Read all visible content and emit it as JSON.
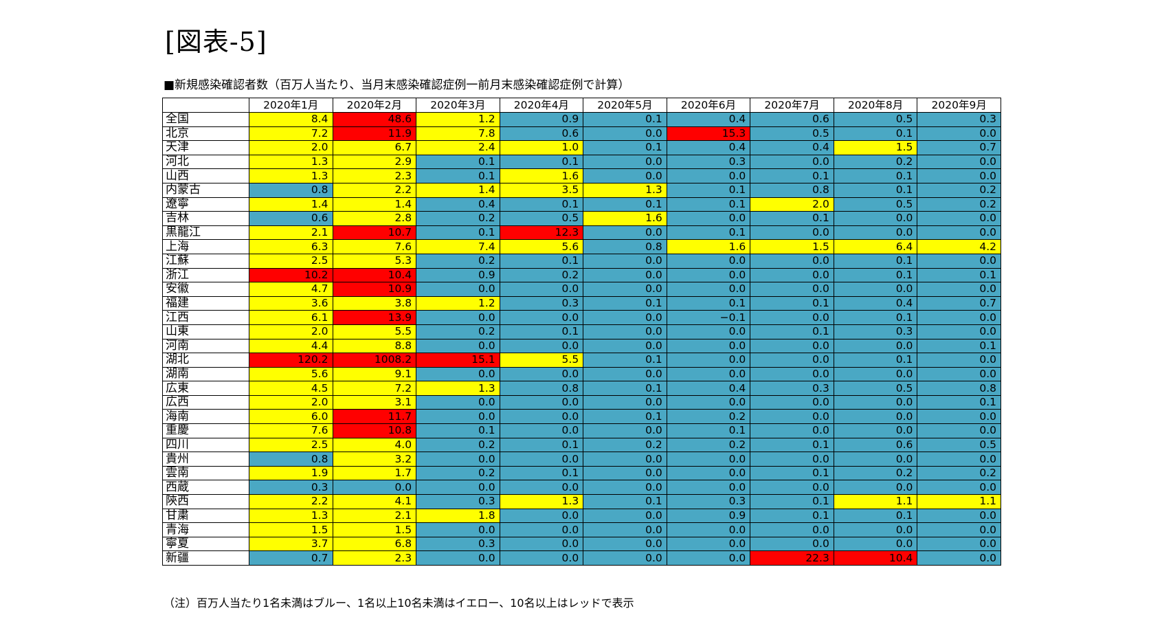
{
  "figure_label": "[図表-5]",
  "subtitle": "■新規感染確認者数（百万人当たり、当月末感染確認症例一前月末感染確認症例で計算）",
  "note": "（注）百万人当たり1名未満はブルー、1名以上10名未満はイエロー、10名以上はレッドで表示",
  "colors": {
    "blue": "#4aa8c4",
    "yellow": "#ffff00",
    "red": "#ff0000"
  },
  "chart_data": {
    "type": "table",
    "columns": [
      "2020年1月",
      "2020年2月",
      "2020年3月",
      "2020年4月",
      "2020年5月",
      "2020年6月",
      "2020年7月",
      "2020年8月",
      "2020年9月"
    ],
    "rows": [
      {
        "region": "全国",
        "values": [
          "8.4",
          "48.6",
          "1.2",
          "0.9",
          "0.1",
          "0.4",
          "0.6",
          "0.5",
          "0.3"
        ]
      },
      {
        "region": "北京",
        "values": [
          "7.2",
          "11.9",
          "7.8",
          "0.6",
          "0.0",
          "15.3",
          "0.5",
          "0.1",
          "0.0"
        ]
      },
      {
        "region": "天津",
        "values": [
          "2.0",
          "6.7",
          "2.4",
          "1.0",
          "0.1",
          "0.4",
          "0.4",
          "1.5",
          "0.7"
        ]
      },
      {
        "region": "河北",
        "values": [
          "1.3",
          "2.9",
          "0.1",
          "0.1",
          "0.0",
          "0.3",
          "0.0",
          "0.2",
          "0.0"
        ]
      },
      {
        "region": "山西",
        "values": [
          "1.3",
          "2.3",
          "0.1",
          "1.6",
          "0.0",
          "0.0",
          "0.1",
          "0.1",
          "0.0"
        ]
      },
      {
        "region": "内蒙古",
        "values": [
          "0.8",
          "2.2",
          "1.4",
          "3.5",
          "1.3",
          "0.1",
          "0.8",
          "0.1",
          "0.2"
        ]
      },
      {
        "region": "遼寧",
        "values": [
          "1.4",
          "1.4",
          "0.4",
          "0.1",
          "0.1",
          "0.1",
          "2.0",
          "0.5",
          "0.2"
        ]
      },
      {
        "region": "吉林",
        "values": [
          "0.6",
          "2.8",
          "0.2",
          "0.5",
          "1.6",
          "0.0",
          "0.1",
          "0.0",
          "0.0"
        ]
      },
      {
        "region": "黒龍江",
        "values": [
          "2.1",
          "10.7",
          "0.1",
          "12.3",
          "0.0",
          "0.1",
          "0.0",
          "0.0",
          "0.0"
        ]
      },
      {
        "region": "上海",
        "values": [
          "6.3",
          "7.6",
          "7.4",
          "5.6",
          "0.8",
          "1.6",
          "1.5",
          "6.4",
          "4.2"
        ]
      },
      {
        "region": "江蘇",
        "values": [
          "2.5",
          "5.3",
          "0.2",
          "0.1",
          "0.0",
          "0.0",
          "0.0",
          "0.1",
          "0.0"
        ]
      },
      {
        "region": "浙江",
        "values": [
          "10.2",
          "10.4",
          "0.9",
          "0.2",
          "0.0",
          "0.0",
          "0.0",
          "0.1",
          "0.1"
        ]
      },
      {
        "region": "安徽",
        "values": [
          "4.7",
          "10.9",
          "0.0",
          "0.0",
          "0.0",
          "0.0",
          "0.0",
          "0.0",
          "0.0"
        ]
      },
      {
        "region": "福建",
        "values": [
          "3.6",
          "3.8",
          "1.2",
          "0.3",
          "0.1",
          "0.1",
          "0.1",
          "0.4",
          "0.7"
        ]
      },
      {
        "region": "江西",
        "values": [
          "6.1",
          "13.9",
          "0.0",
          "0.0",
          "0.0",
          "−0.1",
          "0.0",
          "0.1",
          "0.0"
        ]
      },
      {
        "region": "山東",
        "values": [
          "2.0",
          "5.5",
          "0.2",
          "0.1",
          "0.0",
          "0.0",
          "0.1",
          "0.3",
          "0.0"
        ]
      },
      {
        "region": "河南",
        "values": [
          "4.4",
          "8.8",
          "0.0",
          "0.0",
          "0.0",
          "0.0",
          "0.0",
          "0.0",
          "0.1"
        ]
      },
      {
        "region": "湖北",
        "values": [
          "120.2",
          "1008.2",
          "15.1",
          "5.5",
          "0.1",
          "0.0",
          "0.0",
          "0.1",
          "0.0"
        ]
      },
      {
        "region": "湖南",
        "values": [
          "5.6",
          "9.1",
          "0.0",
          "0.0",
          "0.0",
          "0.0",
          "0.0",
          "0.0",
          "0.0"
        ]
      },
      {
        "region": "広東",
        "values": [
          "4.5",
          "7.2",
          "1.3",
          "0.8",
          "0.1",
          "0.4",
          "0.3",
          "0.5",
          "0.8"
        ]
      },
      {
        "region": "広西",
        "values": [
          "2.0",
          "3.1",
          "0.0",
          "0.0",
          "0.0",
          "0.0",
          "0.0",
          "0.0",
          "0.1"
        ]
      },
      {
        "region": "海南",
        "values": [
          "6.0",
          "11.7",
          "0.0",
          "0.0",
          "0.1",
          "0.2",
          "0.0",
          "0.0",
          "0.0"
        ]
      },
      {
        "region": "重慶",
        "values": [
          "7.6",
          "10.8",
          "0.1",
          "0.0",
          "0.0",
          "0.1",
          "0.0",
          "0.0",
          "0.0"
        ]
      },
      {
        "region": "四川",
        "values": [
          "2.5",
          "4.0",
          "0.2",
          "0.1",
          "0.2",
          "0.2",
          "0.1",
          "0.6",
          "0.5"
        ]
      },
      {
        "region": "貴州",
        "values": [
          "0.8",
          "3.2",
          "0.0",
          "0.0",
          "0.0",
          "0.0",
          "0.0",
          "0.0",
          "0.0"
        ]
      },
      {
        "region": "雲南",
        "values": [
          "1.9",
          "1.7",
          "0.2",
          "0.1",
          "0.0",
          "0.0",
          "0.1",
          "0.2",
          "0.2"
        ]
      },
      {
        "region": "西蔵",
        "values": [
          "0.3",
          "0.0",
          "0.0",
          "0.0",
          "0.0",
          "0.0",
          "0.0",
          "0.0",
          "0.0"
        ]
      },
      {
        "region": "陝西",
        "values": [
          "2.2",
          "4.1",
          "0.3",
          "1.3",
          "0.1",
          "0.3",
          "0.1",
          "1.1",
          "1.1"
        ]
      },
      {
        "region": "甘粛",
        "values": [
          "1.3",
          "2.1",
          "1.8",
          "0.0",
          "0.0",
          "0.9",
          "0.1",
          "0.1",
          "0.0"
        ]
      },
      {
        "region": "青海",
        "values": [
          "1.5",
          "1.5",
          "0.0",
          "0.0",
          "0.0",
          "0.0",
          "0.0",
          "0.0",
          "0.0"
        ]
      },
      {
        "region": "寧夏",
        "values": [
          "3.7",
          "6.8",
          "0.3",
          "0.0",
          "0.0",
          "0.0",
          "0.0",
          "0.0",
          "0.0"
        ]
      },
      {
        "region": "新疆",
        "values": [
          "0.7",
          "2.3",
          "0.0",
          "0.0",
          "0.0",
          "0.0",
          "22.3",
          "10.4",
          "0.0"
        ]
      }
    ]
  }
}
